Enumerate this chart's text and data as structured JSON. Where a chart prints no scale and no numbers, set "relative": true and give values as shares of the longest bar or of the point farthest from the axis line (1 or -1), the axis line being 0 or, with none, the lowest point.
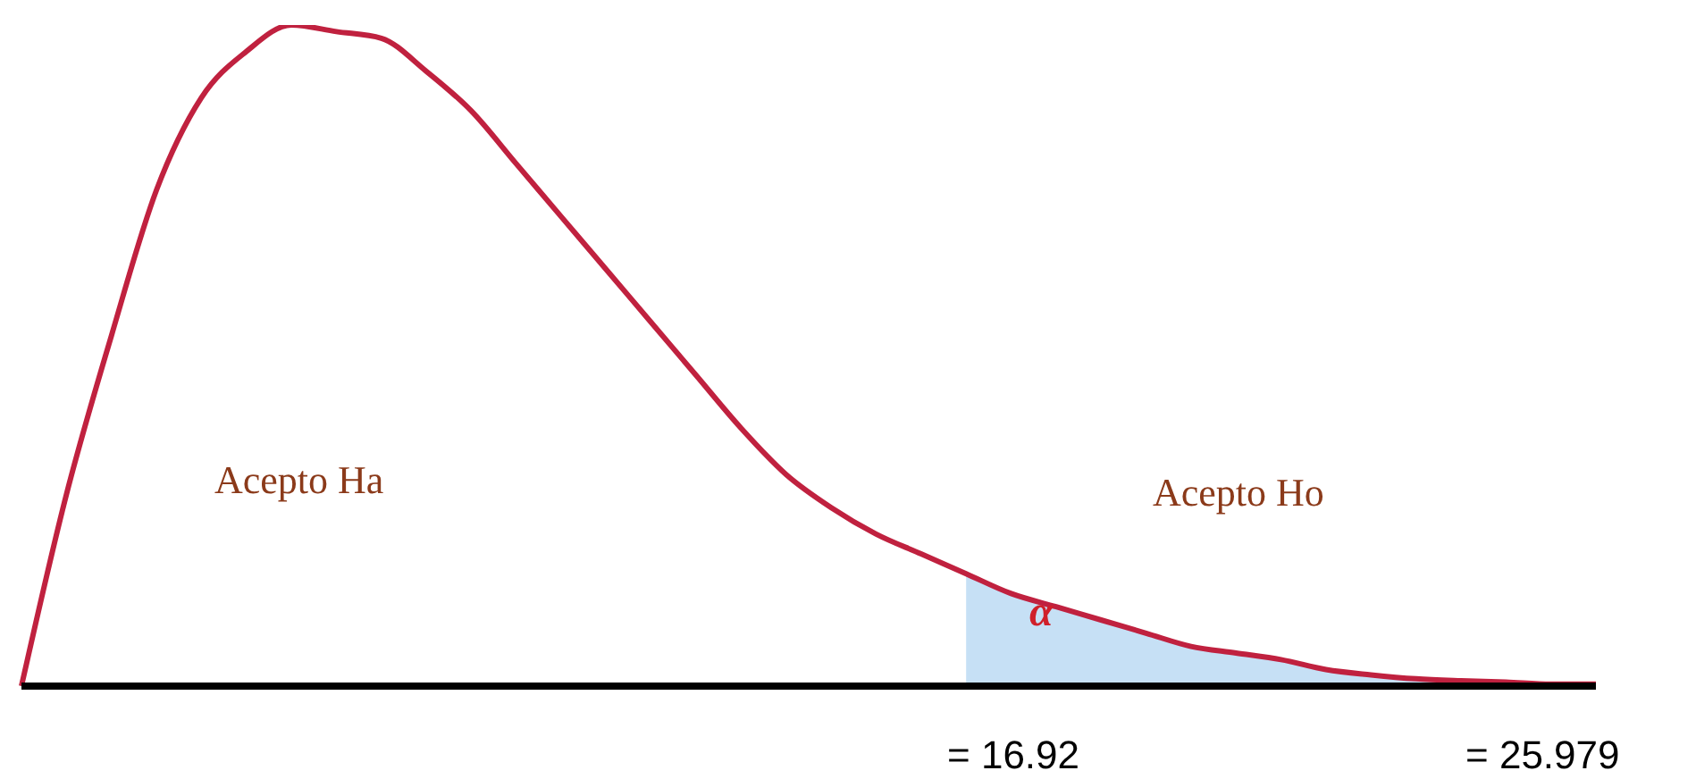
{
  "chart_data": {
    "type": "line",
    "relative": true,
    "marker": "none",
    "categories": [
      null,
      null,
      null,
      null,
      null,
      null,
      null,
      null,
      null,
      null,
      null,
      null,
      null,
      null,
      null,
      null,
      null,
      null,
      null,
      null,
      null,
      null,
      null,
      null,
      null,
      null,
      null,
      null,
      null,
      null,
      null,
      null,
      null,
      null,
      null,
      null
    ],
    "series": [
      {
        "type": "area",
        "color": "#c6e0f5",
        "values": [
          null,
          null,
          null,
          null,
          null,
          null,
          null,
          null,
          null,
          null,
          null,
          null,
          null,
          null,
          null,
          null,
          null,
          null,
          null,
          null,
          null,
          0.17,
          0.14,
          0.12,
          0.1,
          0.08,
          0.06,
          0.05,
          0.04,
          0.025,
          0.017,
          0.011,
          0.008,
          0.006,
          0.003,
          0.003
        ]
      },
      {
        "color": "#c0213f",
        "values": [
          0,
          0.29,
          0.53,
          0.75,
          0.89,
          0.96,
          1,
          0.99,
          0.98,
          0.93,
          0.87,
          0.79,
          0.71,
          0.63,
          0.55,
          0.47,
          0.39,
          0.32,
          0.27,
          0.23,
          0.2,
          0.17,
          0.14,
          0.12,
          0.1,
          0.08,
          0.06,
          0.05,
          0.04,
          0.025,
          0.017,
          0.011,
          0.008,
          0.006,
          0.003,
          0.003
        ]
      }
    ],
    "annotations": [
      "Acepto Ha",
      "Acepto Ho",
      "α",
      "= 16.92",
      "= 25.979"
    ]
  }
}
